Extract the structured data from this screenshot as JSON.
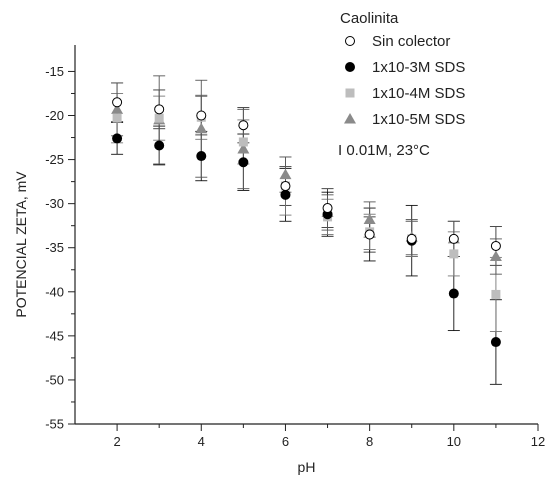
{
  "chart_data": {
    "type": "scatter",
    "title": "",
    "xlabel": "pH",
    "ylabel": "POTENCIAL ZETA, mV",
    "xlim": [
      1,
      12
    ],
    "ylim": [
      -55,
      -12
    ],
    "x_ticks": [
      2,
      4,
      6,
      8,
      10,
      12
    ],
    "y_ticks": [
      -55,
      -50,
      -45,
      -40,
      -35,
      -30,
      -25,
      -20,
      -15
    ],
    "legend_placement": "top-right",
    "legend_title": "Caolinita",
    "annotation": "I 0.01M, 23°C",
    "grid": false,
    "colors": {
      "axis": "#222222",
      "black": "#000000",
      "light_gray": "#bdbdbd",
      "dark_gray": "#8a8a8a"
    },
    "series": [
      {
        "name": "Sin colector",
        "marker": "open-circle",
        "color": "#000000",
        "points": [
          {
            "x": 2,
            "y": -18.5,
            "err": 2.2
          },
          {
            "x": 3,
            "y": -19.3,
            "err": 2.2
          },
          {
            "x": 4,
            "y": -20.0,
            "err": 2.2
          },
          {
            "x": 5,
            "y": -21.1,
            "err": 2.0
          },
          {
            "x": 6,
            "y": -28.0,
            "err": 2.2
          },
          {
            "x": 7,
            "y": -30.5,
            "err": 2.2
          },
          {
            "x": 8,
            "y": -33.5,
            "err": 2.0
          },
          {
            "x": 9,
            "y": -34.0,
            "err": 2.0
          },
          {
            "x": 10,
            "y": -34.0,
            "err": 2.0
          },
          {
            "x": 11,
            "y": -34.8,
            "err": 2.2
          }
        ]
      },
      {
        "name": "1x10-3M SDS",
        "marker": "filled-circle",
        "color": "#000000",
        "points": [
          {
            "x": 2,
            "y": -22.6,
            "err": 1.8
          },
          {
            "x": 3,
            "y": -23.4,
            "err": 2.2
          },
          {
            "x": 4,
            "y": -24.6,
            "err": 2.8
          },
          {
            "x": 5,
            "y": -25.3,
            "err": 3.2
          },
          {
            "x": 6,
            "y": -29.0,
            "err": 3.0
          },
          {
            "x": 7,
            "y": -31.2,
            "err": 2.5
          },
          {
            "x": 8,
            "y": -33.5,
            "err": 3.0
          },
          {
            "x": 9,
            "y": -34.2,
            "err": 4.0
          },
          {
            "x": 10,
            "y": -40.2,
            "err": 4.2
          },
          {
            "x": 11,
            "y": -45.7,
            "err": 4.8
          }
        ]
      },
      {
        "name": "1x10-4M SDS",
        "marker": "square",
        "color": "#bdbdbd",
        "points": [
          {
            "x": 2,
            "y": -20.3,
            "err": 2.8
          },
          {
            "x": 3,
            "y": -20.3,
            "err": 2.5
          },
          {
            "x": 4,
            "y": -20.2,
            "err": 2.5
          },
          {
            "x": 5,
            "y": -23.0,
            "err": 2.5
          },
          {
            "x": 6,
            "y": -28.0,
            "err": 3.3
          },
          {
            "x": 7,
            "y": -31.5,
            "err": 2.0
          },
          {
            "x": 8,
            "y": -33.2,
            "err": 2.0
          },
          {
            "x": 9,
            "y": -34.0,
            "err": 2.0
          },
          {
            "x": 10,
            "y": -35.7,
            "err": 2.5
          },
          {
            "x": 11,
            "y": -40.3,
            "err": 4.2
          }
        ]
      },
      {
        "name": "1x10-5M SDS",
        "marker": "triangle",
        "color": "#8a8a8a",
        "points": [
          {
            "x": 2,
            "y": -19.3,
            "err": 3.0
          },
          {
            "x": 3,
            "y": -20.5,
            "err": 5.0
          },
          {
            "x": 4,
            "y": -21.5,
            "err": 5.5
          },
          {
            "x": 5,
            "y": -23.8,
            "err": 4.5
          },
          {
            "x": 6,
            "y": -26.7,
            "err": 2.0
          },
          {
            "x": 7,
            "y": -31.0,
            "err": 2.0
          },
          {
            "x": 8,
            "y": -31.8,
            "err": 2.0
          },
          {
            "x": 9,
            "y": -33.8,
            "err": 2.0
          },
          {
            "x": 10,
            "y": -34.0,
            "err": 2.0
          },
          {
            "x": 11,
            "y": -36.0,
            "err": 2.0
          }
        ]
      }
    ]
  }
}
